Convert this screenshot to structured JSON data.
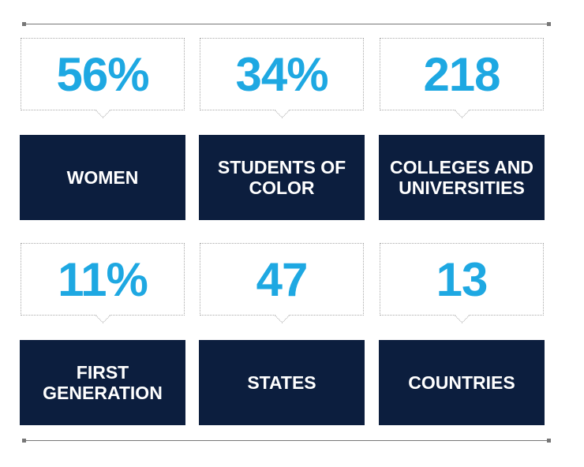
{
  "stats": [
    {
      "value": "56%",
      "label": [
        "WOMEN"
      ]
    },
    {
      "value": "34%",
      "label": [
        "STUDENTS OF",
        "COLOR"
      ]
    },
    {
      "value": "218",
      "label": [
        "COLLEGES AND",
        "UNIVERSITIES"
      ]
    },
    {
      "value": "11%",
      "label": [
        "FIRST",
        "GENERATION"
      ]
    },
    {
      "value": "47",
      "label": [
        "STATES"
      ]
    },
    {
      "value": "13",
      "label": [
        "COUNTRIES"
      ]
    }
  ]
}
